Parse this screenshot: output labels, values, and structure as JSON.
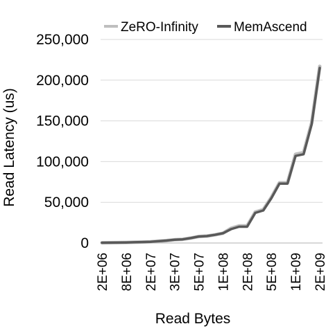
{
  "chart_data": {
    "type": "line",
    "xlabel": "Read Bytes",
    "ylabel": "Read Latency (us)",
    "x_scale": "log",
    "ylim": [
      0,
      250000
    ],
    "y_ticks": [
      0,
      50000,
      100000,
      150000,
      200000,
      250000
    ],
    "y_tick_labels": [
      "0",
      "50,000",
      "100,000",
      "150,000",
      "200,000",
      "250,000"
    ],
    "x_tick_labels": [
      "2E+06",
      "8E+06",
      "2E+07",
      "3E+07",
      "5E+07",
      "1E+08",
      "2E+08",
      "5E+08",
      "1E+09",
      "2E+09"
    ],
    "grid": "horizontal",
    "legend_position": "top",
    "series": [
      {
        "name": "ZeRO-Infinity",
        "color": "#bfbfbf",
        "values": [
          300,
          400,
          500,
          700,
          900,
          1200,
          1500,
          2200,
          3000,
          4000,
          4500,
          6000,
          8000,
          8500,
          10000,
          12000,
          18000,
          21000,
          21000,
          38000,
          41000,
          56000,
          74000,
          74000,
          109000,
          111000,
          148000,
          217000
        ]
      },
      {
        "name": "MemAscend",
        "color": "#595959",
        "values": [
          300,
          400,
          500,
          700,
          900,
          1200,
          1500,
          2200,
          3000,
          4000,
          4500,
          6000,
          8000,
          8500,
          10000,
          12000,
          17000,
          20000,
          20000,
          37000,
          40000,
          55000,
          73000,
          73000,
          107000,
          109000,
          146000,
          215000
        ]
      }
    ]
  }
}
